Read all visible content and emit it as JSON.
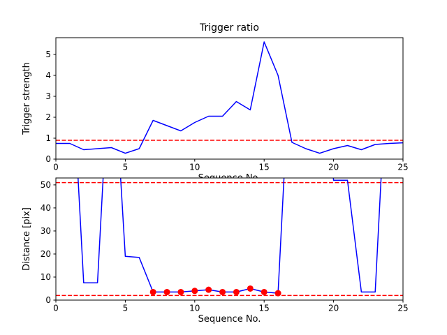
{
  "figure": {
    "background": "#ffffff",
    "line_color": "#0000ff",
    "threshold_color": "#ff0000",
    "marker_color": "#ff0000",
    "frame_color": "#000000",
    "text_color": "#000000"
  },
  "chart_data": [
    {
      "type": "line",
      "title": "Trigger ratio",
      "xlabel": "Sequence No.",
      "ylabel": "Trigger strength",
      "xlim": [
        0,
        25
      ],
      "ylim": [
        0,
        5.8
      ],
      "xticks": [
        0,
        5,
        10,
        15,
        20,
        25
      ],
      "yticks": [
        0,
        1,
        2,
        3,
        4,
        5
      ],
      "grid": false,
      "legend": "none",
      "series_name": "trigger-strength",
      "x": [
        0,
        1,
        2,
        3,
        4,
        5,
        6,
        7,
        8,
        9,
        10,
        11,
        12,
        13,
        14,
        15,
        16,
        17,
        18,
        19,
        20,
        21,
        22,
        23,
        24,
        25
      ],
      "y": [
        0.75,
        0.75,
        0.45,
        0.5,
        0.55,
        0.28,
        0.5,
        1.85,
        1.6,
        1.35,
        1.75,
        2.05,
        2.05,
        2.75,
        2.35,
        5.6,
        4.0,
        0.8,
        0.5,
        0.28,
        0.5,
        0.65,
        0.45,
        0.7,
        0.75,
        0.78
      ],
      "thresholds": [
        0.9
      ]
    },
    {
      "type": "line",
      "title": "",
      "xlabel": "Sequence No.",
      "ylabel": "Distance [pix]",
      "xlim": [
        0,
        25
      ],
      "ylim": [
        0,
        53
      ],
      "xticks": [
        0,
        5,
        10,
        15,
        20,
        25
      ],
      "yticks": [
        0,
        10,
        20,
        30,
        40,
        50
      ],
      "grid": false,
      "legend": "none",
      "series_name": "distance",
      "x": [
        0,
        1,
        2,
        3,
        4,
        5,
        6,
        7,
        8,
        9,
        10,
        11,
        12,
        13,
        14,
        15,
        16,
        17,
        18,
        19,
        20,
        21,
        22,
        23,
        24,
        25
      ],
      "y": [
        120,
        120,
        7.5,
        7.5,
        120,
        19,
        18.5,
        3.5,
        3.5,
        3.5,
        4,
        4.5,
        3.5,
        3.5,
        5,
        3.5,
        3,
        120,
        120,
        120,
        52,
        52,
        3.5,
        3.5,
        120,
        120
      ],
      "thresholds": [
        51,
        2
      ],
      "markers": {
        "x": [
          7,
          8,
          9,
          10,
          11,
          12,
          13,
          14,
          15,
          16
        ],
        "y": [
          3.5,
          3.5,
          3.5,
          4,
          4.5,
          3.5,
          3.5,
          5,
          3.5,
          3
        ]
      }
    }
  ]
}
